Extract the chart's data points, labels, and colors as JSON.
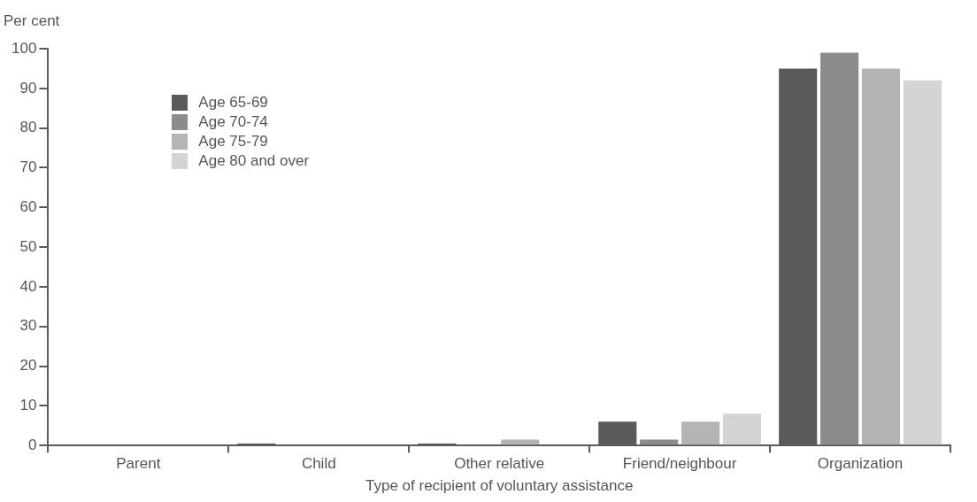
{
  "chart_data": {
    "type": "bar",
    "ylabel": "Per cent",
    "xlabel": "Type of recipient of voluntary assistance",
    "categories": [
      "Parent",
      "Child",
      "Other relative",
      "Friend/neighbour",
      "Organization"
    ],
    "series": [
      {
        "name": "Age 65-69",
        "color": "#5a5a5a",
        "values": [
          0,
          0.5,
          0.5,
          6,
          95
        ]
      },
      {
        "name": "Age 70-74",
        "color": "#8c8c8c",
        "values": [
          0,
          0,
          0,
          1.5,
          99
        ]
      },
      {
        "name": "Age 75-79",
        "color": "#b4b4b4",
        "values": [
          0,
          0,
          1.5,
          6,
          95
        ]
      },
      {
        "name": "Age 80 and over",
        "color": "#d4d4d4",
        "values": [
          0,
          0,
          0,
          8,
          92
        ]
      }
    ],
    "ylim": [
      0,
      100
    ],
    "yticks": [
      0,
      10,
      20,
      30,
      40,
      50,
      60,
      70,
      80,
      90,
      100
    ],
    "grid": false,
    "legend": "top left"
  }
}
